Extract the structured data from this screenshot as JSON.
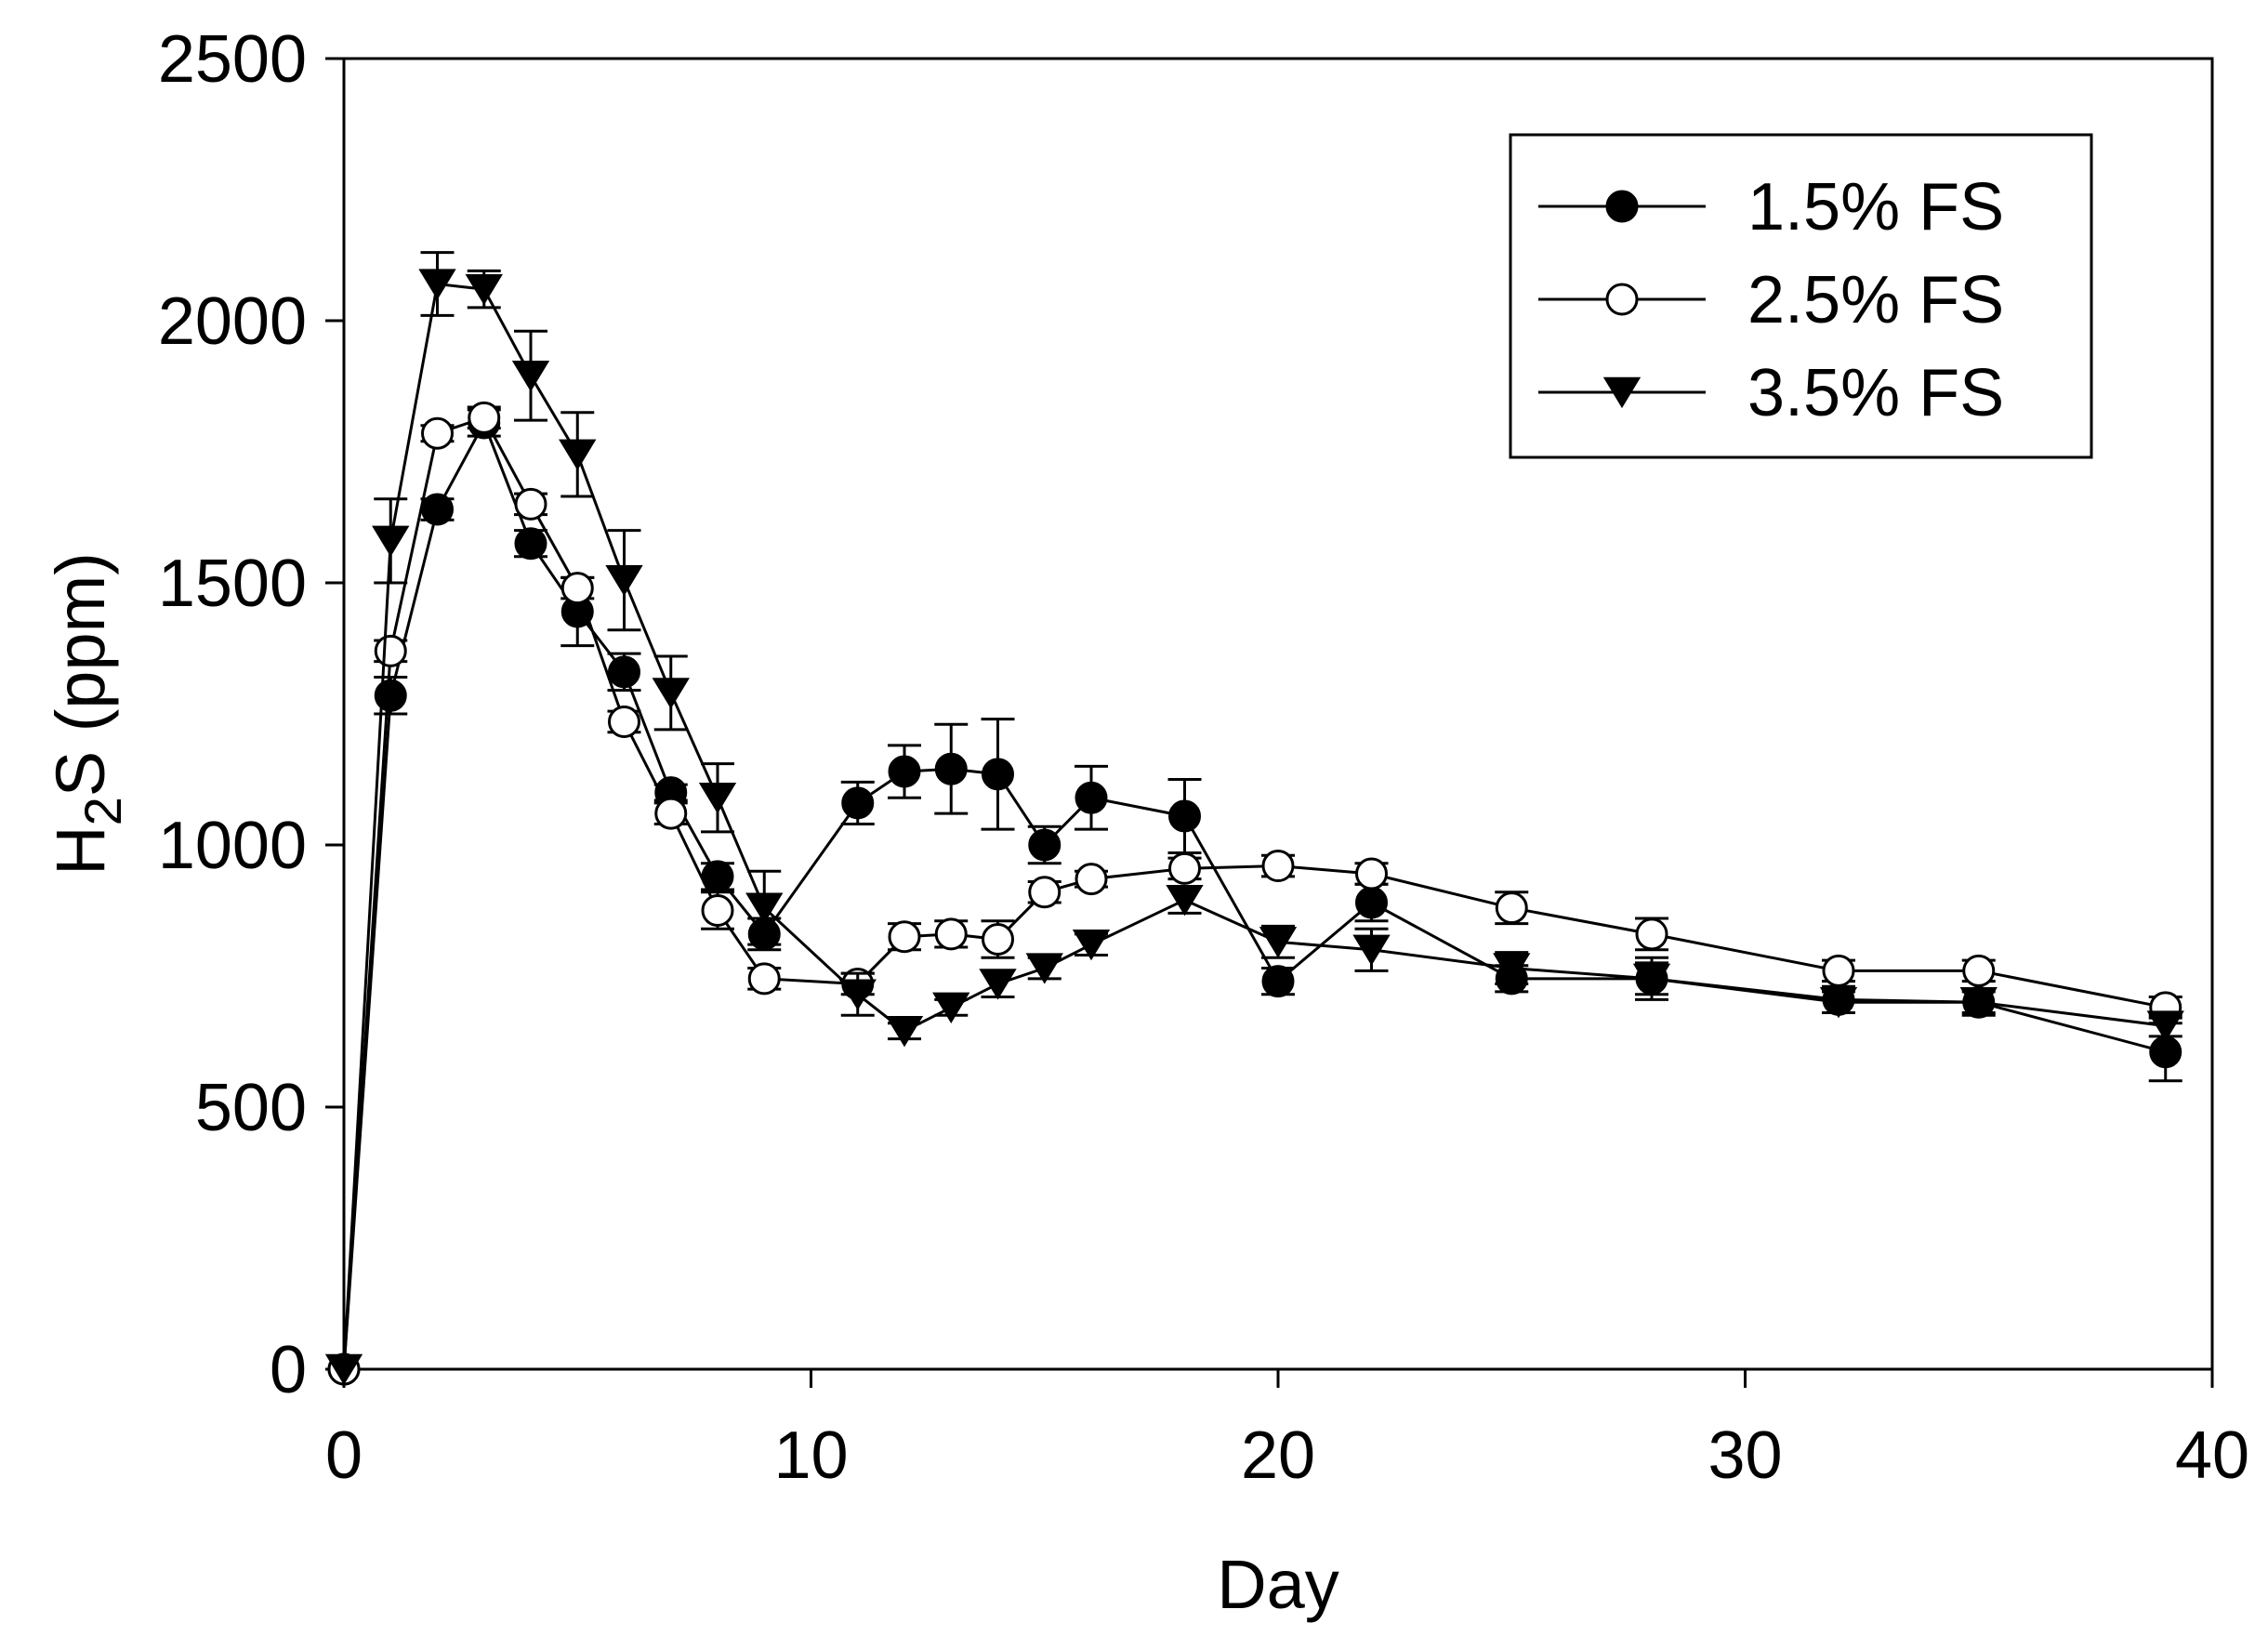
{
  "chart_data": {
    "type": "line",
    "title": "",
    "xlabel": "Day",
    "ylabel": {
      "main": "H",
      "sub": "2",
      "rest": "S (ppm)"
    },
    "xlim": [
      0,
      40
    ],
    "ylim": [
      0,
      2500
    ],
    "xticks": [
      0,
      10,
      20,
      30,
      40
    ],
    "yticks": [
      0,
      500,
      1000,
      1500,
      2000,
      2500
    ],
    "grid": false,
    "legend_position": "top-right",
    "series": [
      {
        "name": "1.5% FS",
        "marker": "filled-circle",
        "x": [
          0,
          1,
          2,
          3,
          4,
          5,
          6,
          7,
          8,
          9,
          11,
          12,
          13,
          14,
          15,
          16,
          18,
          20,
          22,
          25,
          28,
          32,
          35,
          39
        ],
        "y": [
          0,
          1285,
          1640,
          1805,
          1575,
          1445,
          1330,
          1100,
          940,
          830,
          1080,
          1140,
          1145,
          1135,
          1000,
          1090,
          1055,
          740,
          890,
          745,
          745,
          705,
          700,
          605
        ],
        "err": [
          0,
          35,
          20,
          25,
          25,
          65,
          35,
          15,
          25,
          30,
          40,
          50,
          85,
          105,
          35,
          60,
          70,
          25,
          35,
          25,
          40,
          25,
          25,
          55
        ]
      },
      {
        "name": "2.5% FS",
        "marker": "open-circle",
        "x": [
          0,
          1,
          2,
          3,
          4,
          5,
          6,
          7,
          8,
          9,
          11,
          12,
          13,
          14,
          15,
          16,
          18,
          20,
          22,
          25,
          28,
          32,
          35,
          39
        ],
        "y": [
          0,
          1370,
          1785,
          1815,
          1650,
          1490,
          1235,
          1060,
          875,
          745,
          735,
          825,
          830,
          820,
          910,
          935,
          955,
          960,
          945,
          880,
          830,
          760,
          760,
          690
        ],
        "err": [
          0,
          20,
          15,
          20,
          20,
          20,
          20,
          20,
          35,
          20,
          20,
          25,
          25,
          35,
          20,
          15,
          20,
          20,
          20,
          30,
          30,
          20,
          20,
          20
        ]
      },
      {
        "name": "3.5% FS",
        "marker": "filled-triangle-down",
        "x": [
          0,
          1,
          2,
          3,
          4,
          5,
          6,
          7,
          8,
          9,
          11,
          12,
          13,
          14,
          15,
          16,
          18,
          20,
          22,
          25,
          28,
          32,
          35,
          39
        ],
        "y": [
          0,
          1580,
          2070,
          2060,
          1895,
          1745,
          1505,
          1290,
          1090,
          880,
          715,
          645,
          690,
          735,
          765,
          810,
          895,
          815,
          800,
          765,
          745,
          700,
          700,
          655
        ],
        "err": [
          0,
          80,
          60,
          35,
          85,
          80,
          95,
          70,
          65,
          70,
          40,
          15,
          15,
          25,
          20,
          20,
          25,
          30,
          40,
          30,
          30,
          20,
          20,
          20
        ]
      }
    ]
  }
}
